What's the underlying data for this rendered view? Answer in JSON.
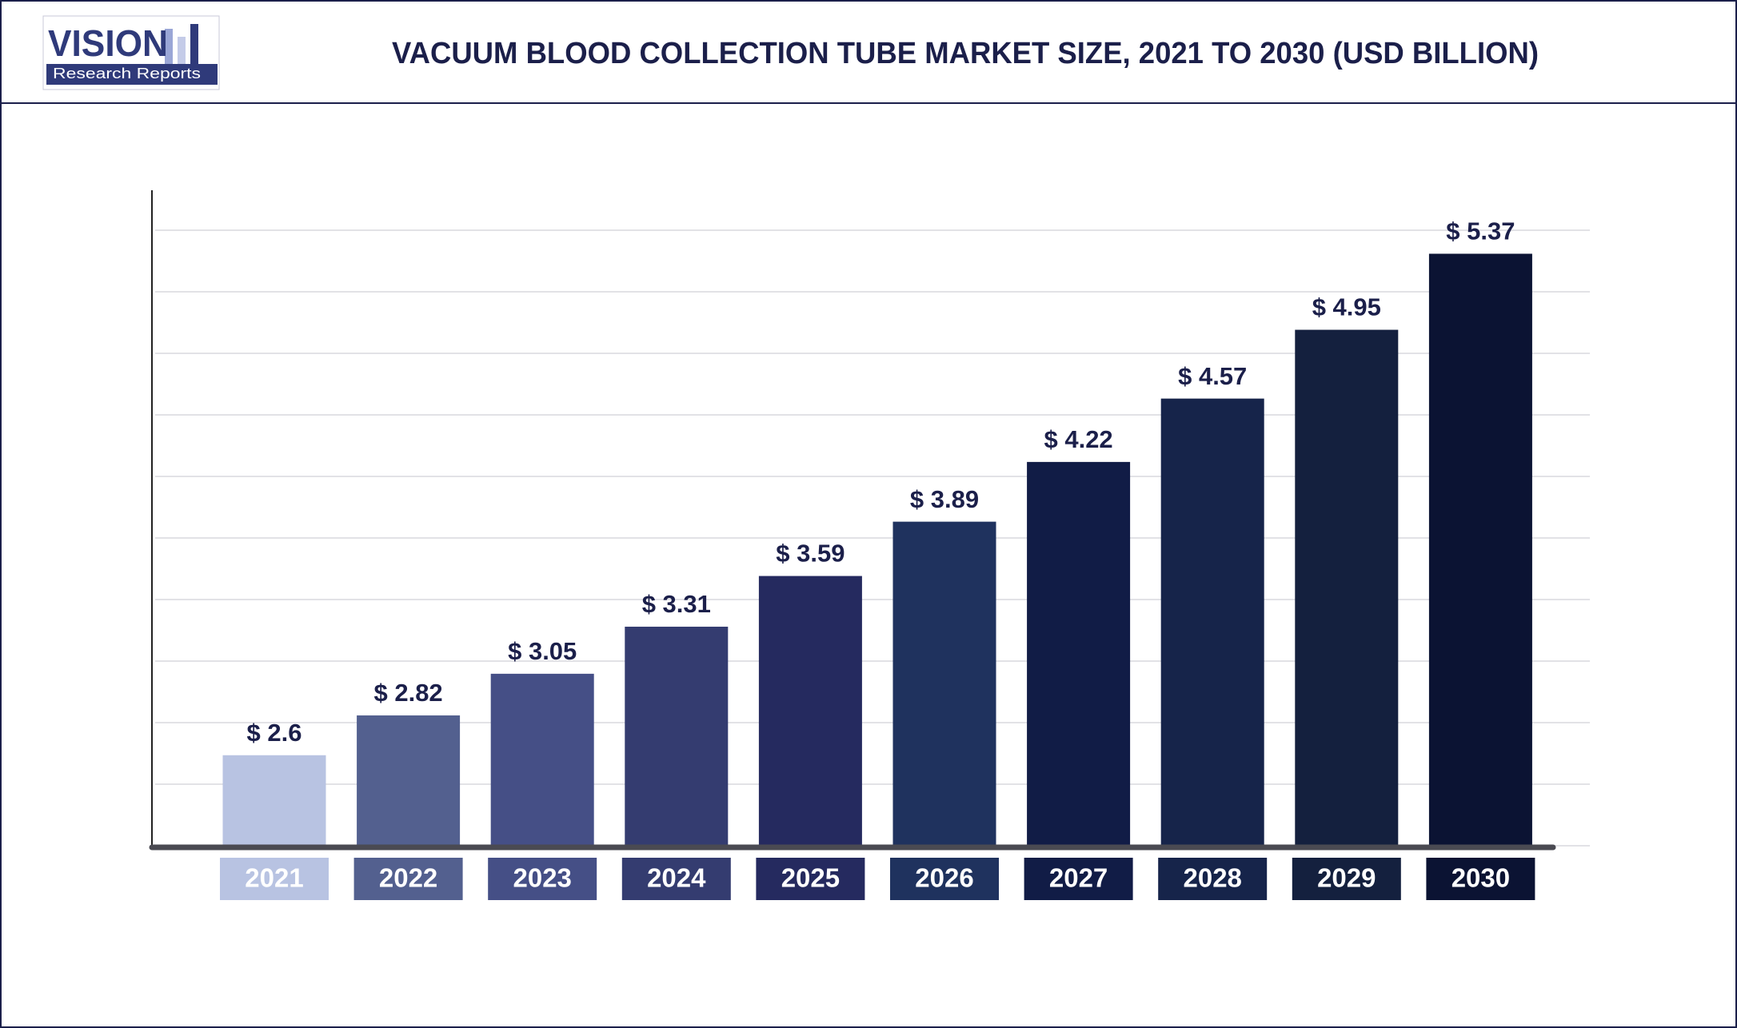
{
  "logo": {
    "name": "VISION",
    "tagline": "Research Reports"
  },
  "chart_data": {
    "type": "bar",
    "title": "VACUUM BLOOD COLLECTION TUBE MARKET SIZE, 2021 TO 2030 (USD BILLION)",
    "categories": [
      "2021",
      "2022",
      "2023",
      "2024",
      "2025",
      "2026",
      "2027",
      "2028",
      "2029",
      "2030"
    ],
    "values": [
      2.6,
      2.82,
      3.05,
      3.31,
      3.59,
      3.89,
      4.22,
      4.57,
      4.95,
      5.37
    ],
    "value_labels": [
      "$ 2.6",
      "$ 2.82",
      "$ 3.05",
      "$ 3.31",
      "$ 3.59",
      "$ 3.89",
      "$ 4.22",
      "$ 4.57",
      "$ 4.95",
      "$ 5.37"
    ],
    "colors": [
      "#b8c3e2",
      "#53608f",
      "#454f86",
      "#343c70",
      "#252a5f",
      "#1f325e",
      "#111c46",
      "#16244a",
      "#14203e",
      "#0b1333"
    ],
    "ylim": [
      2.1,
      5.5
    ],
    "yticks": [
      2.1,
      2.44,
      2.78,
      3.12,
      3.46,
      3.8,
      4.14,
      4.48,
      4.82,
      5.16,
      5.5
    ],
    "grid": true
  }
}
